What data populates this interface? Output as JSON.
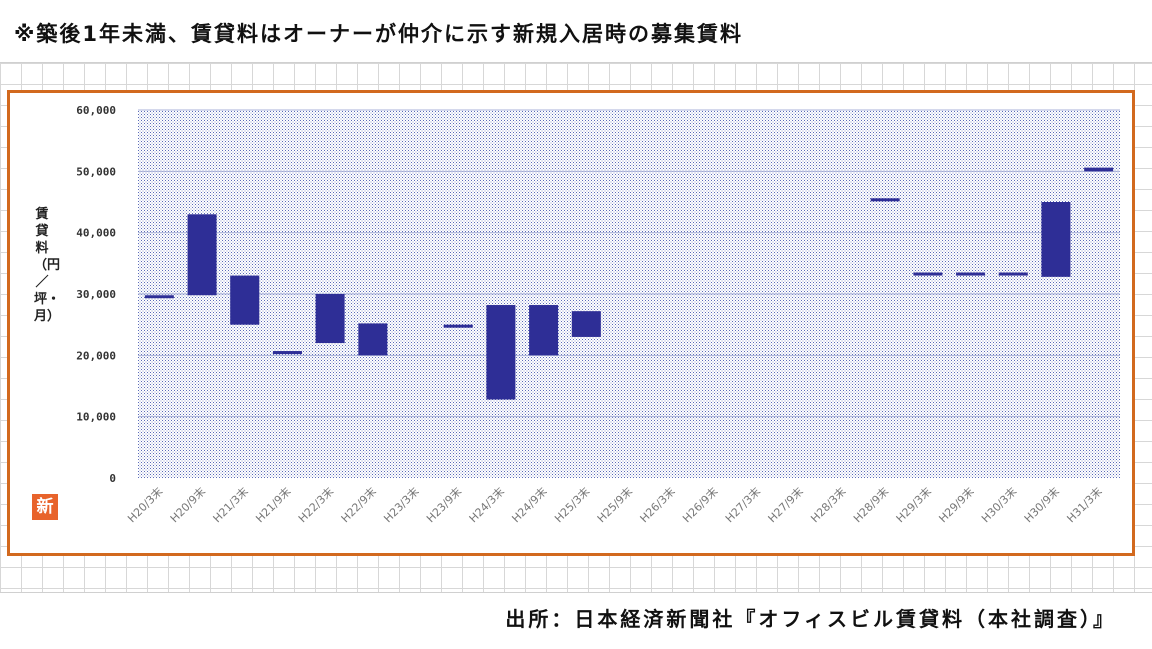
{
  "note": "※築後1年未満、賃貸料はオーナーが仲介に示す新規入居時の募集賃料",
  "source": "出所：日本経済新聞社『オフィスビル賃貸料（本社調査）』",
  "logo_text": "新",
  "colors": {
    "bar": "#2e2e96",
    "frame": "#d2691e",
    "plot_dots": "#5a6ab8"
  },
  "chart_data": {
    "type": "bar",
    "subtype": "floating-range",
    "ylabel": "賃貸料（円／坪・月）",
    "xlabel": "",
    "ylim": [
      0,
      60000
    ],
    "ytick_values": [
      0,
      10000,
      20000,
      30000,
      40000,
      50000,
      60000
    ],
    "ytick_labels": [
      "0",
      "10,000",
      "20,000",
      "30,000",
      "40,000",
      "50,000",
      "60,000"
    ],
    "grid": true,
    "categories": [
      "H20/3末",
      "H20/9末",
      "H21/3末",
      "H21/9末",
      "H22/3末",
      "H22/9末",
      "H23/3末",
      "H23/9末",
      "H24/3末",
      "H24/9末",
      "H25/3末",
      "H25/9末",
      "H26/3末",
      "H26/9末",
      "H27/3末",
      "H27/9末",
      "H28/3末",
      "H28/9末",
      "H29/3末",
      "H29/9末",
      "H30/3末",
      "H30/9末",
      "H31/3末"
    ],
    "series": [
      {
        "low": [
          29500,
          29800,
          25000,
          20200,
          22000,
          20000,
          null,
          24600,
          12800,
          20000,
          23000,
          null,
          null,
          null,
          null,
          null,
          null,
          45200,
          33000,
          33000,
          33000,
          32800,
          50000
        ],
        "high": [
          29800,
          43000,
          33000,
          20700,
          30000,
          25200,
          null,
          25000,
          28200,
          28200,
          27200,
          null,
          null,
          null,
          null,
          null,
          null,
          45600,
          33500,
          33500,
          33500,
          45000,
          50600
        ]
      }
    ]
  }
}
